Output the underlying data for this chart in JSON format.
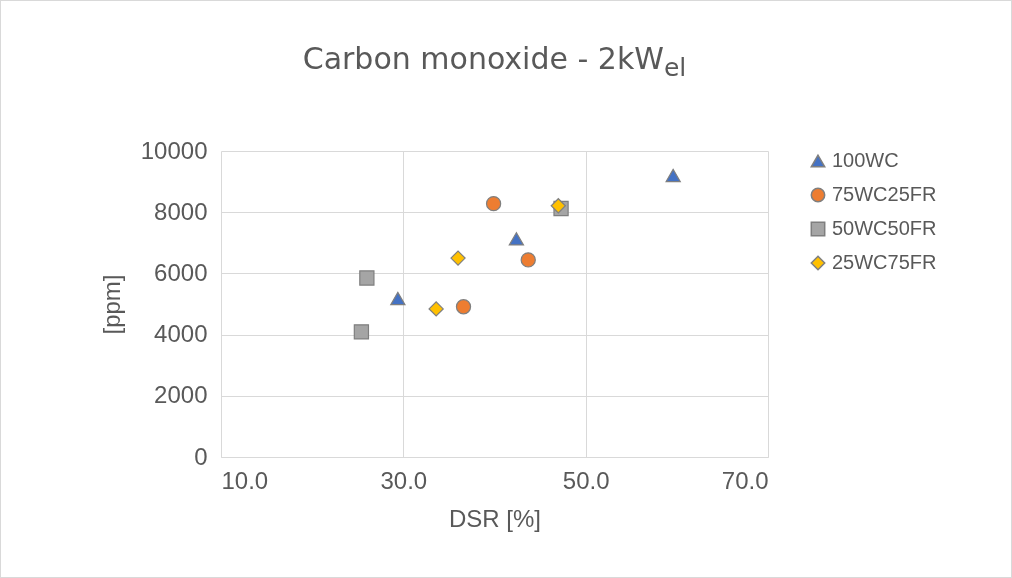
{
  "chart_data": {
    "type": "scatter",
    "title": "Carbon monoxide - 2kW$_{el}$",
    "xlabel": "DSR [%]",
    "ylabel": "[ppm]",
    "xlim": [
      10,
      70
    ],
    "xticks": [
      {
        "value": 10,
        "label": "10.0"
      },
      {
        "value": 30,
        "label": "30.0"
      },
      {
        "value": 50,
        "label": "50.0"
      },
      {
        "value": 70,
        "label": "70.0"
      }
    ],
    "ylim": [
      0,
      10000
    ],
    "yticks": [
      0,
      2000,
      4000,
      6000,
      8000,
      10000
    ],
    "grid": true,
    "legend": "right",
    "series": [
      {
        "name": "100WC",
        "color": "#4472c4",
        "marker": "triangle",
        "x": [
          59.6,
          42.4,
          29.4
        ],
        "values": [
          9200,
          7130,
          5180
        ]
      },
      {
        "name": "75WC25FR",
        "color": "#ed7d31",
        "marker": "circle",
        "x": [
          39.9,
          43.7,
          36.6
        ],
        "values": [
          8280,
          6440,
          4910
        ]
      },
      {
        "name": "50WC50FR",
        "color": "#a5a5a5",
        "marker": "square",
        "x": [
          26.0,
          25.4,
          47.3
        ],
        "values": [
          5850,
          4090,
          8120
        ]
      },
      {
        "name": "25WC75FR",
        "color": "#ffc000",
        "marker": "diamond",
        "x": [
          33.6,
          36.0,
          47.0
        ],
        "values": [
          4840,
          6500,
          8210
        ]
      }
    ]
  }
}
